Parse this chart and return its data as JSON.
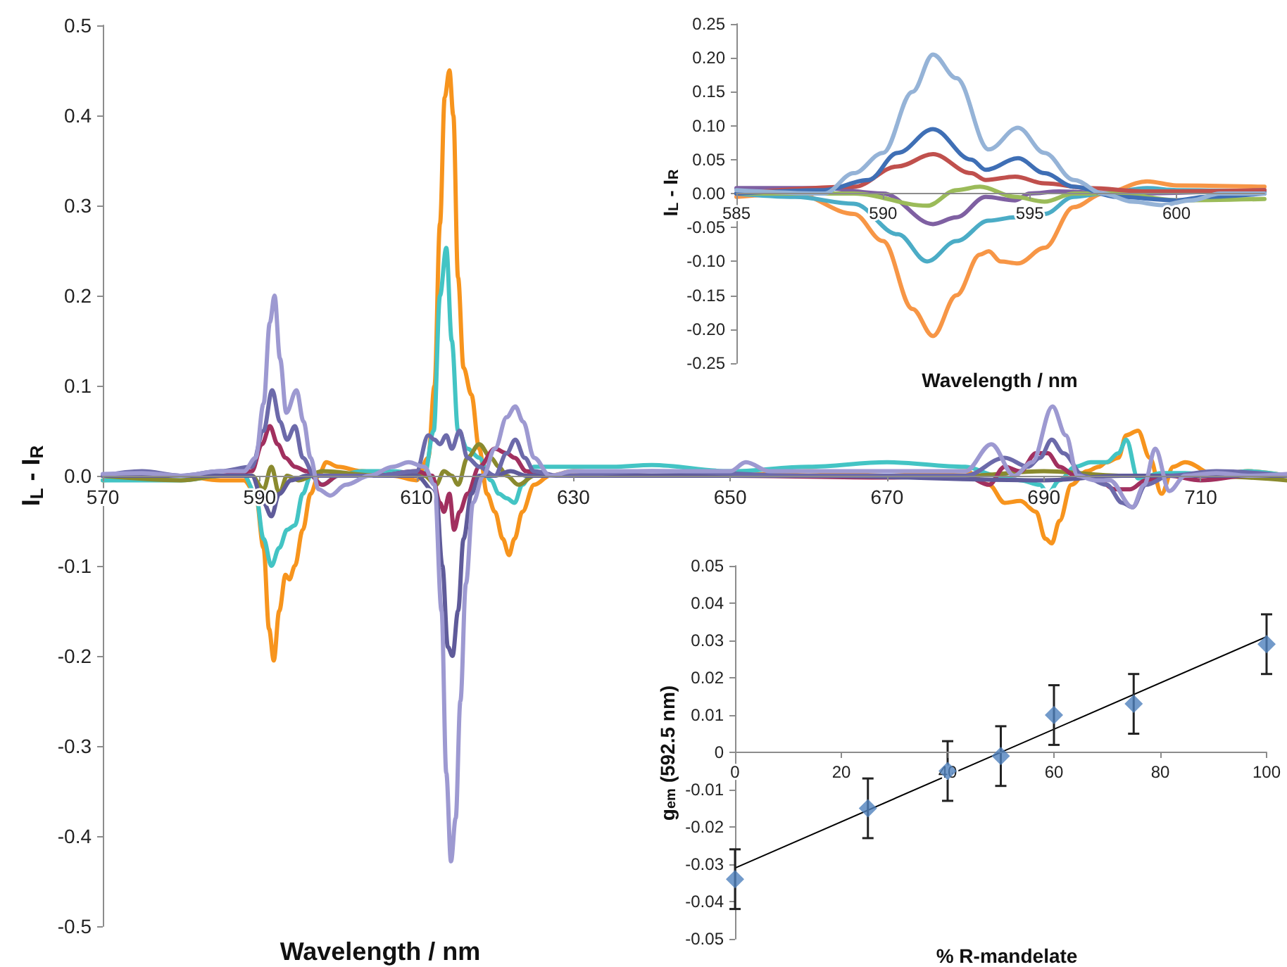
{
  "chart_data": [
    {
      "type": "line",
      "xlabel": "Wavelength / nm",
      "ylabel": "I$_{L}$ - I$_{R}$",
      "xlim": [
        570,
        721
      ],
      "xticks": [
        570,
        590,
        610,
        630,
        650,
        670,
        690,
        710
      ],
      "ylim": [
        -0.5,
        0.5
      ],
      "yticks": [
        {
          "value": -0.5,
          "label": "-0.5"
        },
        {
          "value": -0.4,
          "label": "-0.4"
        },
        {
          "value": -0.3,
          "label": "-0.3"
        },
        {
          "value": -0.2,
          "label": "-0.2"
        },
        {
          "value": -0.1,
          "label": "-0.1"
        },
        {
          "value": 0,
          "label": "0.0"
        },
        {
          "value": 0.1,
          "label": "0.1"
        },
        {
          "value": 0.2,
          "label": "0.2"
        },
        {
          "value": 0.3,
          "label": "0.3"
        },
        {
          "value": 0.4,
          "label": "0.4"
        },
        {
          "value": 0.5,
          "label": "0.5"
        }
      ],
      "series": [
        {
          "color": "#f7941d",
          "x": [
            570,
            580,
            585,
            588,
            589.5,
            590.5,
            591.2,
            591.8,
            592.5,
            593.3,
            593.8,
            594.5,
            595.5,
            596.5,
            597.5,
            598.5,
            600,
            603,
            607,
            610,
            611.5,
            612.3,
            613,
            613.6,
            614.2,
            614.7,
            615.3,
            616,
            617,
            618,
            619,
            620,
            621,
            621.8,
            622.5,
            623.5,
            625,
            627,
            630,
            640,
            650,
            660,
            670,
            680,
            683,
            685,
            687,
            689,
            690.2,
            691,
            692,
            693.5,
            695.5,
            697,
            698,
            699.5,
            700.5,
            702,
            703.5,
            705,
            706.5,
            708,
            712,
            716,
            721
          ],
          "values": [
            -0.005,
            0.0,
            -0.005,
            -0.005,
            -0.02,
            -0.08,
            -0.17,
            -0.205,
            -0.15,
            -0.11,
            -0.115,
            -0.1,
            -0.06,
            -0.02,
            0.0,
            0.015,
            0.01,
            0.005,
            0.0,
            -0.005,
            0.02,
            0.1,
            0.28,
            0.42,
            0.45,
            0.4,
            0.22,
            0.12,
            0.09,
            0.03,
            -0.02,
            -0.04,
            -0.07,
            -0.088,
            -0.07,
            -0.04,
            -0.01,
            0.0,
            0.005,
            0.0,
            0.0,
            0.005,
            0.0,
            0.005,
            -0.01,
            -0.03,
            -0.028,
            -0.04,
            -0.07,
            -0.075,
            -0.05,
            -0.01,
            0.005,
            0.01,
            0.015,
            0.02,
            0.045,
            0.05,
            0.02,
            -0.02,
            0.01,
            0.015,
            0.0,
            0.005,
            0.0
          ]
        },
        {
          "color": "#43c4c4",
          "x": [
            570,
            580,
            585,
            588,
            589.5,
            590.5,
            591.5,
            592.5,
            593.5,
            594.5,
            595.5,
            596.5,
            598,
            600,
            603,
            607,
            611,
            612.2,
            613,
            613.8,
            614.5,
            615.3,
            616.5,
            618,
            619.5,
            620.5,
            621.5,
            622.5,
            623.5,
            625,
            628,
            635,
            640,
            650,
            660,
            670,
            680,
            684,
            687,
            689.5,
            690.5,
            692,
            694,
            696,
            698,
            699.5,
            700.5,
            702,
            705,
            708,
            712,
            716,
            721
          ],
          "values": [
            -0.005,
            -0.005,
            0.0,
            0.0,
            -0.02,
            -0.07,
            -0.1,
            -0.08,
            -0.06,
            -0.055,
            -0.02,
            0.0,
            -0.01,
            0.0,
            0.005,
            0.005,
            0.0,
            0.05,
            0.2,
            0.253,
            0.15,
            0.05,
            0.03,
            0.02,
            -0.005,
            -0.02,
            -0.025,
            -0.03,
            -0.01,
            0.01,
            0.01,
            0.01,
            0.012,
            0.005,
            0.01,
            0.015,
            0.01,
            0.0,
            -0.005,
            -0.01,
            -0.02,
            -0.005,
            0.01,
            0.015,
            0.015,
            0.025,
            0.04,
            -0.003,
            0.003,
            0.003,
            0.0,
            0.005,
            0.0
          ]
        },
        {
          "color": "#8a8a2e",
          "x": [
            570,
            580,
            585,
            589,
            590.5,
            591.5,
            592.5,
            593.5,
            595,
            598,
            605,
            611,
            612.5,
            613.5,
            614.5,
            615.3,
            616.5,
            618,
            619.5,
            620.5,
            621.5,
            623,
            625,
            630,
            660,
            680,
            690,
            700,
            710,
            721
          ],
          "values": [
            0.0,
            -0.005,
            0.0,
            0.0,
            -0.015,
            0.01,
            -0.02,
            0.0,
            -0.005,
            0.005,
            0.0,
            0.0,
            -0.01,
            0.005,
            0.0,
            -0.01,
            0.02,
            0.035,
            0.02,
            0.01,
            0.0,
            -0.01,
            0.0,
            0.0,
            0.0,
            0.0,
            0.005,
            0.0,
            0.0,
            -0.005
          ]
        },
        {
          "color": "#a1305f",
          "x": [
            570,
            585,
            589,
            590.3,
            591.3,
            592.3,
            593.3,
            594.5,
            596,
            598,
            600,
            605,
            610,
            612,
            613,
            613.5,
            614.2,
            614.8,
            615.5,
            616.5,
            618,
            620,
            621.5,
            622.5,
            624,
            626,
            630,
            650,
            670,
            680,
            683,
            685,
            687,
            689,
            690.5,
            692,
            694,
            697,
            699,
            701,
            703,
            706,
            710,
            716,
            721
          ],
          "values": [
            0.0,
            0.0,
            0.005,
            0.035,
            0.055,
            0.035,
            0.02,
            0.01,
            0.005,
            -0.01,
            0.0,
            0.0,
            0.005,
            0.0,
            -0.03,
            -0.04,
            -0.02,
            -0.06,
            -0.04,
            -0.02,
            0.01,
            0.03,
            0.025,
            0.02,
            0.005,
            0.0,
            0.0,
            0.0,
            -0.002,
            0.0,
            -0.01,
            0.01,
            0.005,
            0.025,
            0.025,
            0.01,
            0.0,
            -0.005,
            -0.015,
            -0.015,
            -0.005,
            0.0,
            -0.005,
            0.0,
            0.0
          ]
        },
        {
          "color": "#5f5b9a",
          "x": [
            570,
            585,
            589,
            590.5,
            591.5,
            592.5,
            594,
            596,
            600,
            610,
            612.5,
            613.3,
            614,
            614.6,
            615.3,
            616,
            617,
            618,
            620,
            622,
            624,
            630,
            660,
            690,
            700,
            710,
            721
          ],
          "values": [
            0.0,
            0.0,
            0.0,
            -0.03,
            -0.045,
            -0.02,
            -0.005,
            0.0,
            0.0,
            0.0,
            -0.02,
            -0.1,
            -0.19,
            -0.2,
            -0.15,
            -0.07,
            -0.02,
            0.0,
            0.0,
            0.005,
            0.0,
            0.0,
            0.0,
            -0.005,
            0.0,
            0.0,
            0.0
          ]
        },
        {
          "color": "#6c6aaa",
          "x": [
            570,
            575,
            580,
            585,
            589,
            590.5,
            591.6,
            592.6,
            593.5,
            594.5,
            595.5,
            597,
            600,
            605,
            610,
            611.5,
            612.3,
            613,
            613.8,
            614.5,
            615.5,
            616.5,
            618,
            620,
            621.5,
            622.6,
            623.8,
            625,
            628,
            640,
            660,
            680,
            685,
            688,
            689.5,
            691,
            692.5,
            695,
            698,
            700,
            701.3,
            703,
            706,
            712,
            721
          ],
          "values": [
            0.0,
            0.005,
            0.0,
            0.005,
            0.01,
            0.05,
            0.095,
            0.06,
            0.04,
            0.055,
            0.02,
            0.0,
            0.0,
            0.0,
            0.005,
            0.045,
            0.04,
            0.035,
            0.045,
            0.03,
            0.05,
            0.02,
            0.01,
            0.0,
            0.025,
            0.04,
            0.02,
            0.005,
            0.0,
            0.005,
            0.0,
            0.0,
            0.02,
            0.01,
            0.02,
            0.04,
            0.025,
            0.0,
            -0.01,
            -0.03,
            -0.035,
            -0.01,
            0.0,
            0.005,
            0.0
          ]
        },
        {
          "color": "#9d99d1",
          "x": [
            570,
            575,
            580,
            585,
            588,
            589.5,
            590.5,
            591.3,
            591.9,
            592.6,
            593.4,
            594.7,
            595.6,
            596.5,
            597.5,
            599,
            601,
            604,
            607,
            609,
            611,
            612.3,
            613.2,
            613.8,
            614.4,
            615,
            615.6,
            616.3,
            617.2,
            618.5,
            620,
            621.5,
            622.6,
            623.6,
            625,
            627,
            630,
            640,
            650,
            652,
            655,
            660,
            670,
            680,
            683.3,
            686.2,
            688.5,
            691.1,
            692.8,
            694.3,
            696.5,
            698.4,
            701.3,
            702.8,
            704.2,
            706,
            708,
            712,
            716,
            721
          ],
          "values": [
            0.002,
            0.003,
            0.0,
            0.005,
            0.005,
            0.02,
            0.08,
            0.17,
            0.2,
            0.13,
            0.07,
            0.095,
            0.06,
            0.02,
            -0.015,
            -0.022,
            -0.01,
            0.0,
            0.01,
            0.015,
            0.01,
            -0.01,
            -0.15,
            -0.33,
            -0.428,
            -0.38,
            -0.25,
            -0.12,
            -0.03,
            0.0,
            0.03,
            0.065,
            0.077,
            0.06,
            0.02,
            0.0,
            0.005,
            0.005,
            0.005,
            0.015,
            0.005,
            0.005,
            0.005,
            0.005,
            0.035,
            0.0,
            0.015,
            0.077,
            0.045,
            0.0,
            -0.005,
            -0.005,
            -0.035,
            -0.01,
            0.03,
            -0.017,
            0.0,
            0.003,
            0.0,
            0.002
          ]
        }
      ]
    },
    {
      "type": "line",
      "xlabel": "Wavelength / nm",
      "ylabel": "I$_{L}$ - I$_{R}$",
      "xlim": [
        585,
        603
      ],
      "xticks": [
        585,
        590,
        595,
        600
      ],
      "ylim": [
        -0.25,
        0.25
      ],
      "yticks": [
        -0.25,
        {
          "value": -0.2,
          "label": "-0.20"
        },
        -0.15,
        {
          "value": -0.1,
          "label": "-0.10"
        },
        -0.05,
        {
          "value": 0,
          "label": "0.00"
        },
        0.05,
        {
          "value": 0.1,
          "label": "0.10"
        },
        0.15,
        {
          "value": 0.2,
          "label": "0.20"
        },
        0.25
      ],
      "series": [
        {
          "color": "#f79646",
          "x": [
            585,
            587,
            589,
            590,
            591,
            591.7,
            592.5,
            593.3,
            593.6,
            594,
            594.6,
            595.5,
            596.5,
            597.5,
            599,
            600,
            603
          ],
          "values": [
            -0.005,
            0.0,
            -0.03,
            -0.07,
            -0.17,
            -0.21,
            -0.15,
            -0.09,
            -0.085,
            -0.1,
            -0.103,
            -0.08,
            -0.02,
            0.0,
            0.018,
            0.012,
            0.01
          ]
        },
        {
          "color": "#4bacc6",
          "x": [
            585,
            587,
            589,
            590.5,
            591.5,
            592.5,
            593.6,
            594.5,
            595.5,
            596.5,
            597.5,
            599,
            600,
            603
          ],
          "values": [
            0.0,
            -0.005,
            -0.015,
            -0.06,
            -0.1,
            -0.07,
            -0.04,
            -0.035,
            -0.03,
            -0.005,
            0.0,
            0.008,
            0.005,
            0.003
          ]
        },
        {
          "color": "#7f60a2",
          "x": [
            585,
            588,
            590,
            591.7,
            592.5,
            593.5,
            594.5,
            595,
            596,
            598,
            603
          ],
          "values": [
            0.008,
            0.008,
            0.0,
            -0.045,
            -0.035,
            -0.005,
            -0.01,
            0.0,
            0.003,
            0.0,
            0.005
          ]
        },
        {
          "color": "#9bbb59",
          "x": [
            585,
            589,
            591.5,
            592.5,
            593.3,
            594.5,
            595.5,
            596.5,
            598,
            600,
            603
          ],
          "values": [
            0.0,
            0.0,
            -0.018,
            0.005,
            0.01,
            -0.005,
            -0.012,
            0.0,
            0.0,
            -0.01,
            -0.008
          ]
        },
        {
          "color": "#c0504d",
          "x": [
            585,
            589,
            590.5,
            591.7,
            593,
            593.5,
            594.5,
            595.5,
            597,
            599,
            603
          ],
          "values": [
            0.0,
            0.01,
            0.04,
            0.058,
            0.03,
            0.02,
            0.025,
            0.015,
            0.008,
            0.003,
            0.005
          ]
        },
        {
          "color": "#3f6fb5",
          "x": [
            585,
            588,
            589.5,
            590.5,
            591.7,
            593,
            593.5,
            594.6,
            595.5,
            596.5,
            598,
            600,
            601,
            603
          ],
          "values": [
            0.0,
            0.005,
            0.02,
            0.06,
            0.095,
            0.05,
            0.035,
            0.052,
            0.03,
            0.01,
            -0.005,
            -0.01,
            -0.005,
            0.0
          ]
        },
        {
          "color": "#95b3d7",
          "x": [
            585,
            588,
            589,
            590,
            591,
            591.7,
            592.5,
            593.6,
            594.6,
            595.5,
            596.5,
            597.5,
            598.5,
            599.5,
            600.5,
            601.5,
            603
          ],
          "values": [
            0.005,
            0.0,
            0.03,
            0.06,
            0.15,
            0.205,
            0.17,
            0.065,
            0.097,
            0.06,
            0.02,
            0.0,
            -0.012,
            -0.017,
            -0.01,
            0.0,
            0.0
          ]
        }
      ]
    },
    {
      "type": "scatter",
      "xlabel": "% R-mandelate",
      "ylabel": "g$_{em}$ (592.5 nm)",
      "xlim": [
        0,
        100
      ],
      "xticks": [
        0,
        20,
        40,
        60,
        80,
        100
      ],
      "ylim": [
        -0.05,
        0.05
      ],
      "yticks": [
        -0.05,
        -0.04,
        -0.03,
        -0.02,
        -0.01,
        0,
        0.01,
        0.02,
        0.03,
        0.04,
        0.05
      ],
      "marker": "diamond",
      "series": [
        {
          "type": "line",
          "color": "#000000",
          "marker": "none",
          "x": [
            0,
            100
          ],
          "values": [
            -0.031,
            0.031
          ]
        },
        {
          "color": "#4f81bd",
          "x": [
            0,
            25,
            40,
            50,
            60,
            75,
            100
          ],
          "values": [
            -0.034,
            -0.015,
            -0.005,
            -0.001,
            0.01,
            0.013,
            0.029
          ],
          "errors": [
            0.008,
            0.008,
            0.008,
            0.008,
            0.008,
            0.008,
            0.008
          ]
        }
      ]
    }
  ]
}
